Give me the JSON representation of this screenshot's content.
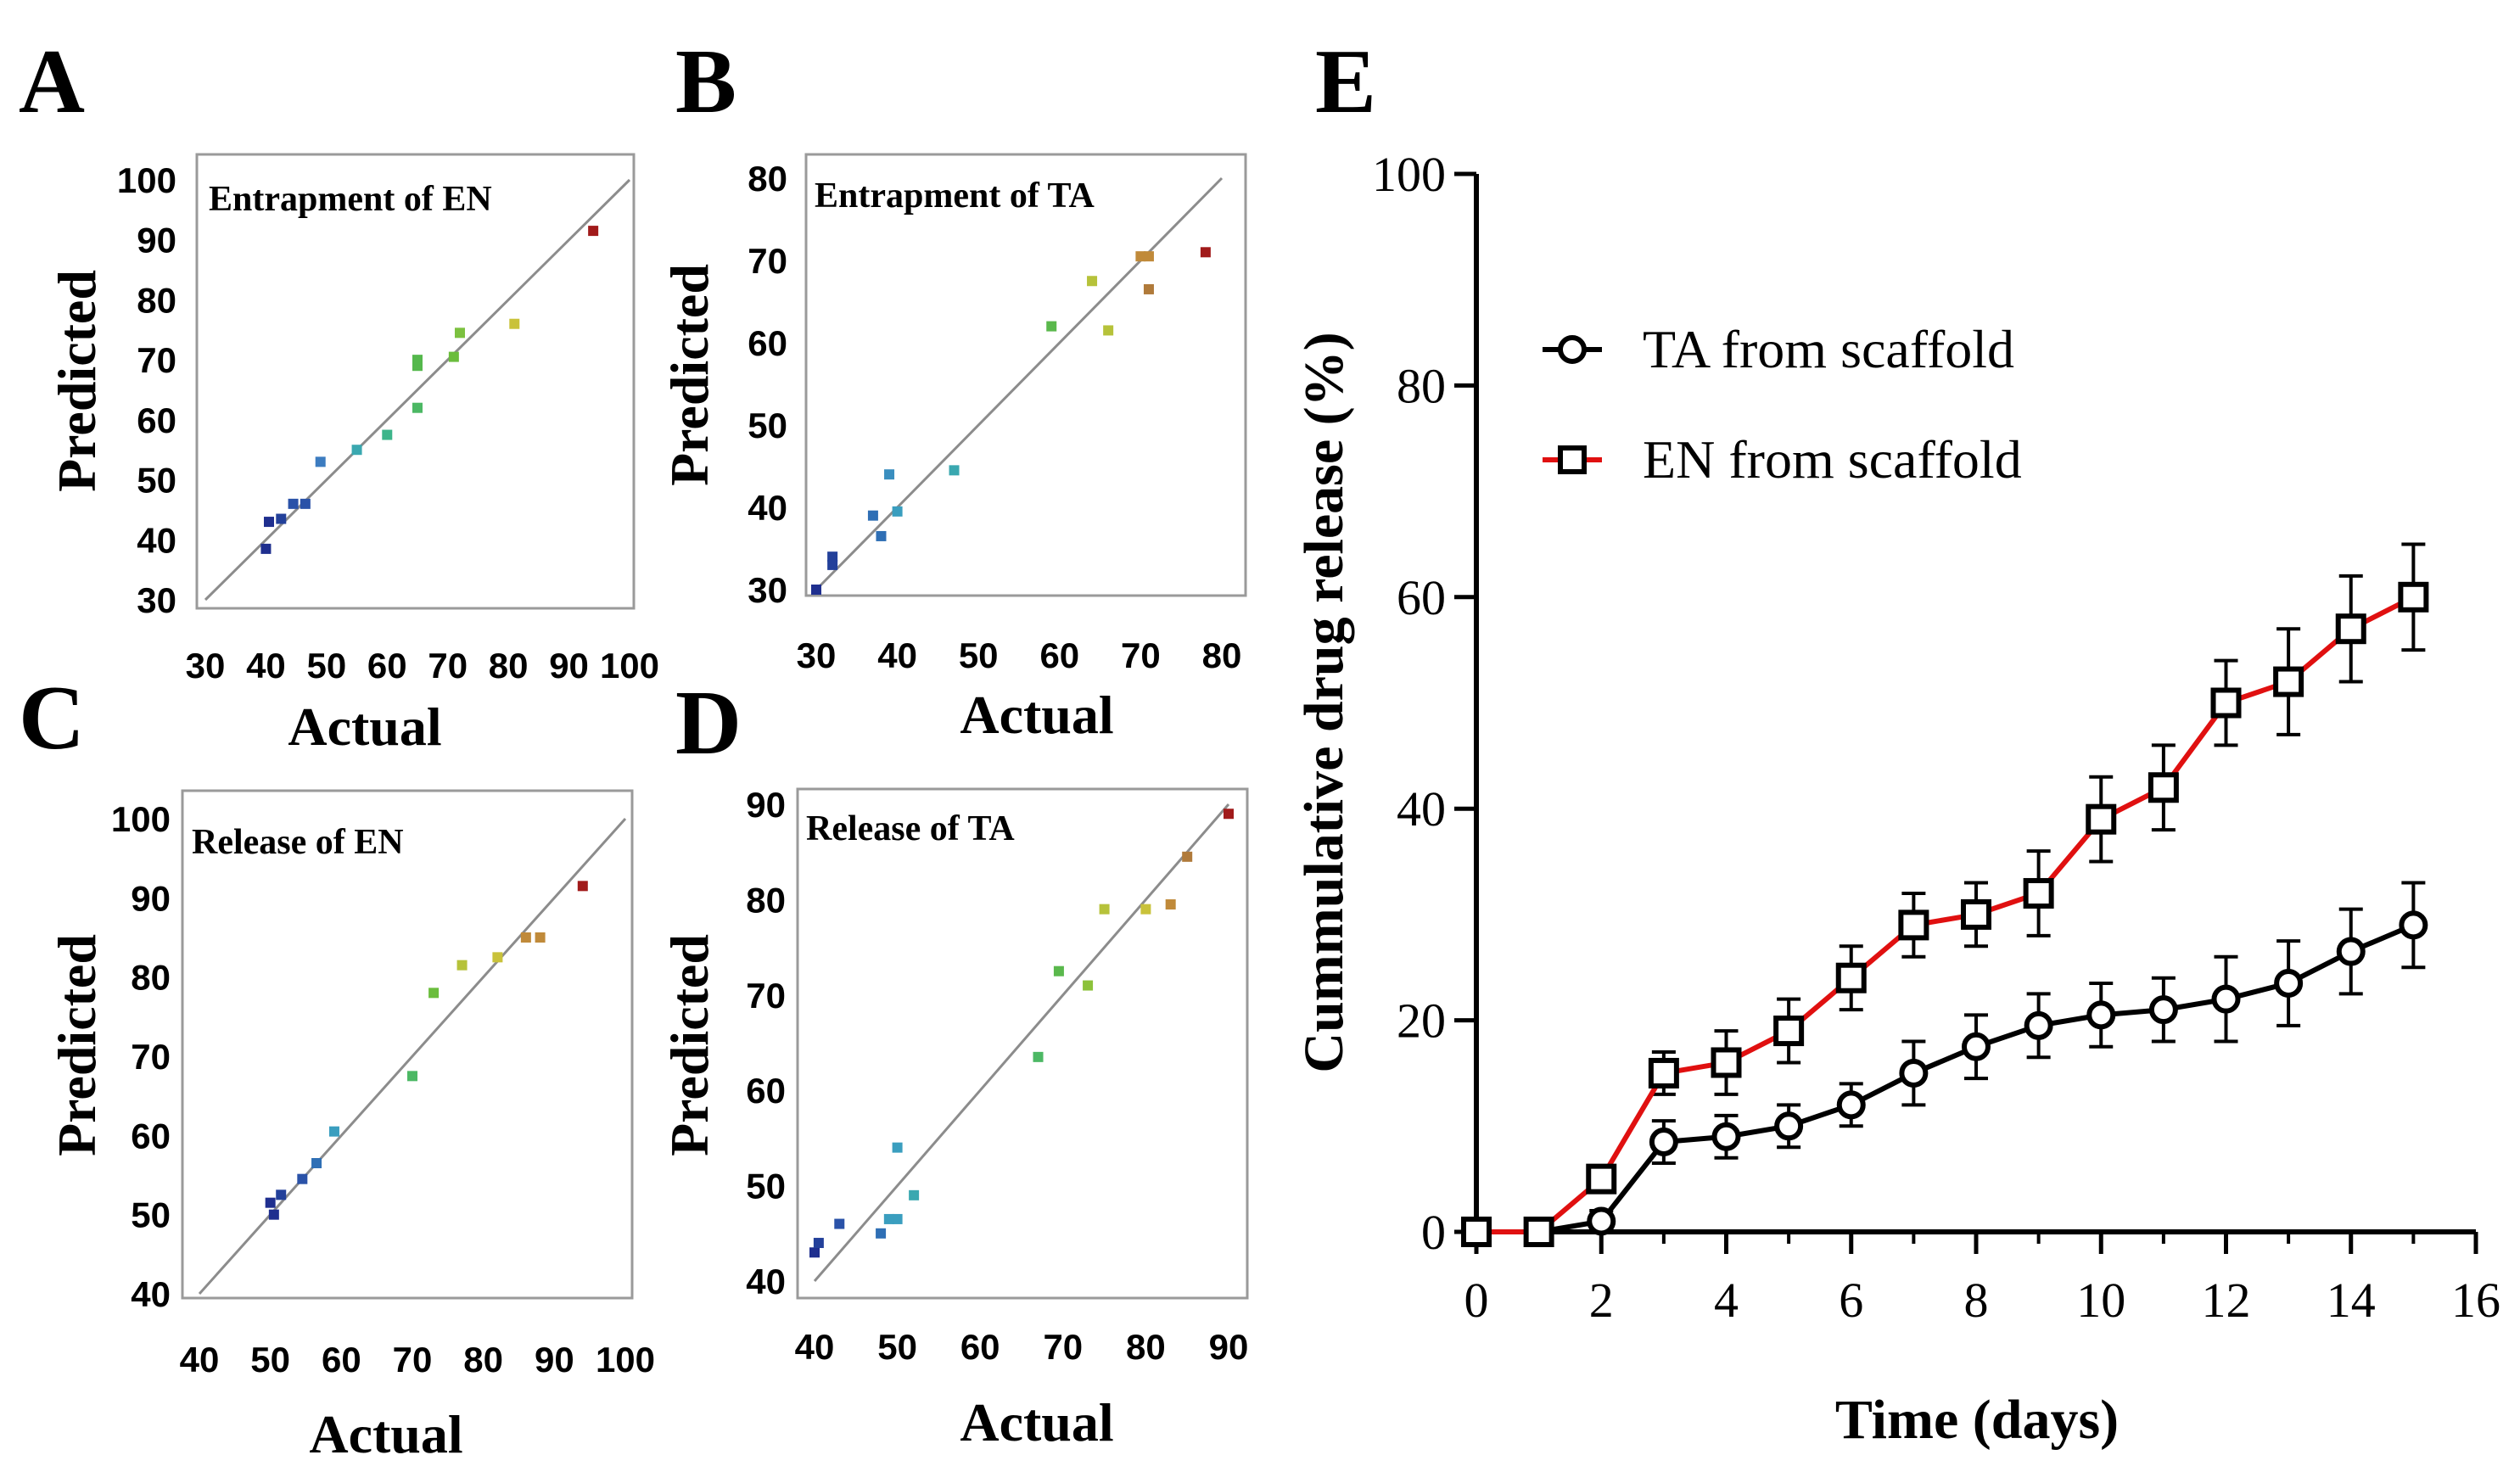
{
  "figure_labels": [
    "A",
    "B",
    "C",
    "D",
    "E"
  ],
  "chart_data": [
    {
      "id": "A",
      "type": "scatter",
      "panel_label": "A",
      "title": "Entrapment  of EN",
      "xlabel": "Actual",
      "ylabel": "Predicted",
      "xlim": [
        30,
        100
      ],
      "ylim": [
        30,
        100
      ],
      "xticks": [
        30,
        40,
        50,
        60,
        70,
        80,
        90,
        100
      ],
      "yticks": [
        30,
        40,
        50,
        60,
        70,
        80,
        90,
        100
      ],
      "reference_line": [
        [
          30,
          30
        ],
        [
          100,
          100
        ]
      ],
      "points": [
        {
          "x": 40,
          "y": 38.5,
          "color": "#1f2f8f"
        },
        {
          "x": 40.5,
          "y": 43,
          "color": "#1f2f8f"
        },
        {
          "x": 42.5,
          "y": 43.5,
          "color": "#23409a"
        },
        {
          "x": 44.5,
          "y": 46,
          "color": "#2a52a8"
        },
        {
          "x": 46.5,
          "y": 46,
          "color": "#2a52a8"
        },
        {
          "x": 49,
          "y": 53,
          "color": "#3c7cc0"
        },
        {
          "x": 55,
          "y": 55,
          "color": "#3aa8b0"
        },
        {
          "x": 60,
          "y": 57.5,
          "color": "#3db58a"
        },
        {
          "x": 65,
          "y": 62,
          "color": "#4cb864"
        },
        {
          "x": 65,
          "y": 69,
          "color": "#55b84c"
        },
        {
          "x": 65,
          "y": 70,
          "color": "#55b84c"
        },
        {
          "x": 71,
          "y": 70.5,
          "color": "#6bbd3d"
        },
        {
          "x": 72,
          "y": 74.5,
          "color": "#7cc140"
        },
        {
          "x": 81,
          "y": 76,
          "color": "#c9c23a"
        },
        {
          "x": 94,
          "y": 91.5,
          "color": "#a11a1a"
        }
      ]
    },
    {
      "id": "B",
      "type": "scatter",
      "panel_label": "B",
      "title": "Entrapment  of TA",
      "xlabel": "Actual",
      "ylabel": "Predicted",
      "xlim": [
        30,
        80
      ],
      "ylim": [
        30,
        80
      ],
      "xticks": [
        30,
        40,
        50,
        60,
        70,
        80
      ],
      "yticks": [
        30,
        40,
        50,
        60,
        70,
        80
      ],
      "reference_line": [
        [
          30,
          30
        ],
        [
          80,
          80
        ]
      ],
      "points": [
        {
          "x": 30,
          "y": 30,
          "color": "#1f2f8f"
        },
        {
          "x": 32,
          "y": 33,
          "color": "#23409a"
        },
        {
          "x": 32,
          "y": 34,
          "color": "#23409a"
        },
        {
          "x": 37,
          "y": 39,
          "color": "#2f6fb5"
        },
        {
          "x": 38,
          "y": 36.5,
          "color": "#2f6fb5"
        },
        {
          "x": 39,
          "y": 44,
          "color": "#3a8ebf"
        },
        {
          "x": 40,
          "y": 39.5,
          "color": "#3a9ebf"
        },
        {
          "x": 47,
          "y": 44.5,
          "color": "#3aa8b0"
        },
        {
          "x": 59,
          "y": 62,
          "color": "#5ab84c"
        },
        {
          "x": 64,
          "y": 67.5,
          "color": "#b6c23a"
        },
        {
          "x": 66,
          "y": 61.5,
          "color": "#b6c23a"
        },
        {
          "x": 70,
          "y": 70.5,
          "color": "#c08a3a"
        },
        {
          "x": 71,
          "y": 70.5,
          "color": "#c08a3a"
        },
        {
          "x": 71,
          "y": 66.5,
          "color": "#b07a3a"
        },
        {
          "x": 78,
          "y": 71,
          "color": "#a11a1a"
        }
      ]
    },
    {
      "id": "C",
      "type": "scatter",
      "panel_label": "C",
      "title": "Release of EN",
      "xlabel": "Actual",
      "ylabel": "Predicted",
      "xlim": [
        40,
        100
      ],
      "ylim": [
        40,
        100
      ],
      "xticks": [
        40,
        50,
        60,
        70,
        80,
        90,
        100
      ],
      "yticks": [
        40,
        50,
        60,
        70,
        80,
        90,
        100
      ],
      "reference_line": [
        [
          40,
          40
        ],
        [
          100,
          100
        ]
      ],
      "points": [
        {
          "x": 50,
          "y": 51.5,
          "color": "#1f2f8f"
        },
        {
          "x": 50.5,
          "y": 50,
          "color": "#1f2f8f"
        },
        {
          "x": 51.5,
          "y": 52.5,
          "color": "#23409a"
        },
        {
          "x": 54.5,
          "y": 54.5,
          "color": "#2a52a8"
        },
        {
          "x": 56.5,
          "y": 56.5,
          "color": "#2f6fb5"
        },
        {
          "x": 59,
          "y": 60.5,
          "color": "#3a9ebf"
        },
        {
          "x": 70,
          "y": 67.5,
          "color": "#4cb864"
        },
        {
          "x": 73,
          "y": 78,
          "color": "#6bbd3d"
        },
        {
          "x": 77,
          "y": 81.5,
          "color": "#b6c23a"
        },
        {
          "x": 82,
          "y": 82.5,
          "color": "#c9c23a"
        },
        {
          "x": 86,
          "y": 85,
          "color": "#c08a3a"
        },
        {
          "x": 88,
          "y": 85,
          "color": "#c08a3a"
        },
        {
          "x": 94,
          "y": 91.5,
          "color": "#a11a1a"
        }
      ]
    },
    {
      "id": "D",
      "type": "scatter",
      "panel_label": "D",
      "title": "Release of TA",
      "xlabel": "Actual",
      "ylabel": "Predicted",
      "xlim": [
        40,
        90
      ],
      "ylim": [
        40,
        90
      ],
      "xticks": [
        40,
        50,
        60,
        70,
        80,
        90
      ],
      "yticks": [
        40,
        50,
        60,
        70,
        80,
        90
      ],
      "reference_line": [
        [
          40,
          40
        ],
        [
          90,
          90
        ]
      ],
      "points": [
        {
          "x": 40,
          "y": 43,
          "color": "#1f2f8f"
        },
        {
          "x": 40.5,
          "y": 44,
          "color": "#23409a"
        },
        {
          "x": 43,
          "y": 46,
          "color": "#2a52a8"
        },
        {
          "x": 48,
          "y": 45,
          "color": "#2f6fb5"
        },
        {
          "x": 49,
          "y": 46.5,
          "color": "#3a9ebf"
        },
        {
          "x": 50,
          "y": 46.5,
          "color": "#3a9ebf"
        },
        {
          "x": 50,
          "y": 54,
          "color": "#3a9ebf"
        },
        {
          "x": 52,
          "y": 49,
          "color": "#3aa8b0"
        },
        {
          "x": 67,
          "y": 63.5,
          "color": "#4cb864"
        },
        {
          "x": 69.5,
          "y": 72.5,
          "color": "#5ab84c"
        },
        {
          "x": 73,
          "y": 71,
          "color": "#8cc23a"
        },
        {
          "x": 75,
          "y": 79,
          "color": "#b6c23a"
        },
        {
          "x": 80,
          "y": 79,
          "color": "#c9c23a"
        },
        {
          "x": 83,
          "y": 79.5,
          "color": "#c08a3a"
        },
        {
          "x": 85,
          "y": 84.5,
          "color": "#b07a3a"
        },
        {
          "x": 90,
          "y": 89,
          "color": "#a11a1a"
        }
      ]
    },
    {
      "id": "E",
      "type": "line",
      "panel_label": "E",
      "title": "",
      "xlabel": "Time (days)",
      "ylabel": "Cummulative drug release (%)",
      "xlim": [
        0,
        16
      ],
      "ylim": [
        0,
        100
      ],
      "xticks": [
        0,
        2,
        4,
        6,
        8,
        10,
        12,
        14,
        16
      ],
      "yticks": [
        0,
        20,
        40,
        60,
        80,
        100
      ],
      "x": [
        0,
        1,
        2,
        3,
        4,
        5,
        6,
        7,
        8,
        9,
        10,
        11,
        12,
        13,
        14,
        15
      ],
      "series": [
        {
          "name": "TA from scaffold",
          "marker": "circle",
          "color": "#000000",
          "values": [
            0,
            0,
            1,
            8.5,
            9,
            10,
            12,
            15,
            17.5,
            19.5,
            20.5,
            21,
            22,
            23.5,
            26.5,
            29
          ],
          "errors": [
            0,
            0,
            1,
            2,
            2,
            2,
            2,
            3,
            3,
            3,
            3,
            3,
            4,
            4,
            4,
            4
          ]
        },
        {
          "name": "EN from scaffold",
          "marker": "square",
          "color": "#e01010",
          "values": [
            0,
            0,
            5,
            15,
            16,
            19,
            24,
            29,
            30,
            32,
            39,
            42,
            50,
            52,
            57,
            60
          ],
          "errors": [
            0,
            0,
            1,
            2,
            3,
            3,
            3,
            3,
            3,
            4,
            4,
            4,
            4,
            5,
            5,
            5
          ]
        }
      ]
    }
  ]
}
